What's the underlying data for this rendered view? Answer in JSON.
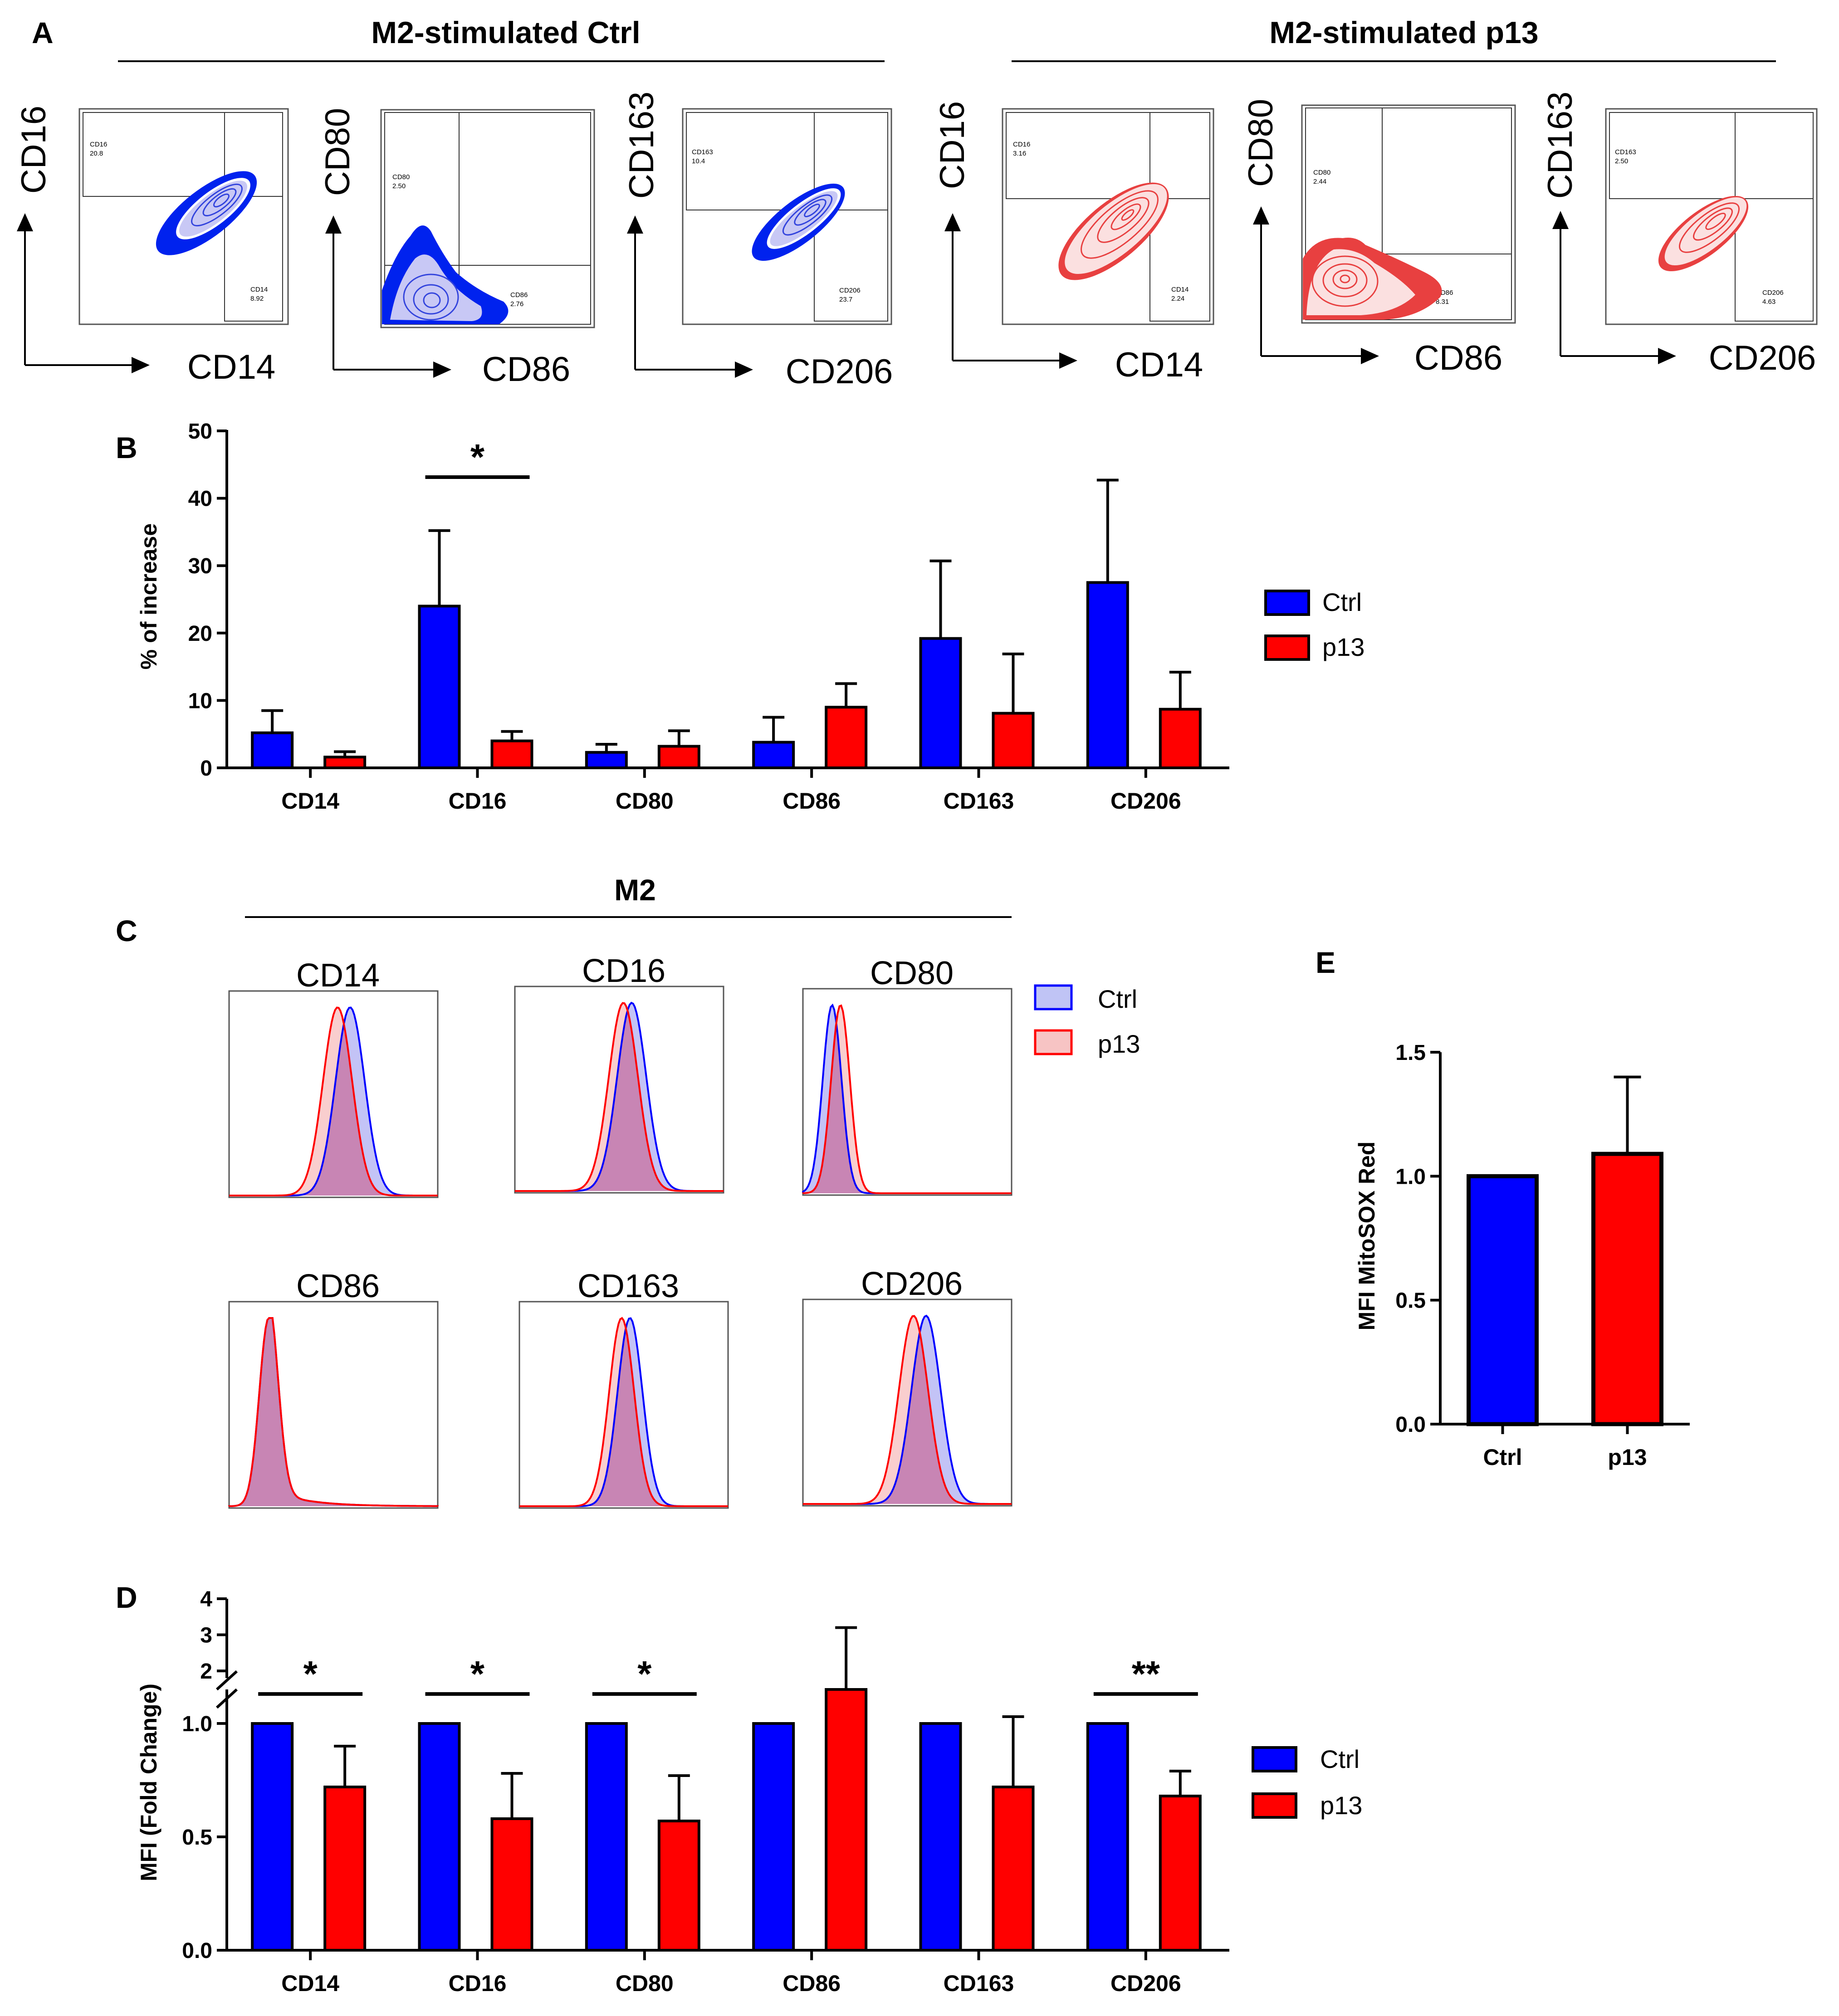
{
  "figure": {
    "panel_labels": {
      "A": "A",
      "B": "B",
      "C": "C",
      "D": "D",
      "E": "E"
    },
    "colors": {
      "ctrl": "#0000ff",
      "p13": "#ff0000",
      "ctrl_light": "#b8b8f5",
      "p13_light": "#f7b9b9",
      "overlap": "#c27bb0"
    }
  },
  "panel_a": {
    "groups": [
      {
        "title": "M2-stimulated Ctrl",
        "color": "blue",
        "plots": [
          {
            "y_axis": "CD16",
            "x_axis": "CD14",
            "gates": [
              {
                "name": "CD16",
                "value": "20.8"
              },
              {
                "name": "CD14",
                "value": "8.92"
              }
            ],
            "quadrant": false
          },
          {
            "y_axis": "CD80",
            "x_axis": "CD86",
            "gates": [
              {
                "name": "CD80",
                "value": "2.50"
              },
              {
                "name": "CD86",
                "value": "2.76"
              }
            ],
            "quadrant": true
          },
          {
            "y_axis": "CD163",
            "x_axis": "CD206",
            "gates": [
              {
                "name": "CD163",
                "value": "10.4"
              },
              {
                "name": "CD206",
                "value": "23.7"
              }
            ],
            "quadrant": false
          }
        ]
      },
      {
        "title": "M2-stimulated p13",
        "color": "red",
        "plots": [
          {
            "y_axis": "CD16",
            "x_axis": "CD14",
            "gates": [
              {
                "name": "CD16",
                "value": "3.16"
              },
              {
                "name": "CD14",
                "value": "2.24"
              }
            ],
            "quadrant": false
          },
          {
            "y_axis": "CD80",
            "x_axis": "CD86",
            "gates": [
              {
                "name": "CD80",
                "value": "2.44"
              },
              {
                "name": "CD86",
                "value": "8.31"
              }
            ],
            "quadrant": true
          },
          {
            "y_axis": "CD163",
            "x_axis": "CD206",
            "gates": [
              {
                "name": "CD163",
                "value": "2.50"
              },
              {
                "name": "CD206",
                "value": "4.63"
              }
            ],
            "quadrant": false
          }
        ]
      }
    ]
  },
  "panel_c": {
    "title": "M2",
    "legend": [
      {
        "label": "Ctrl"
      },
      {
        "label": "p13"
      }
    ],
    "histograms": [
      {
        "label": "CD14",
        "ctrl_peak": 0.58,
        "p13_peak": 0.52,
        "width": 0.07,
        "tail": 0
      },
      {
        "label": "CD16",
        "ctrl_peak": 0.56,
        "p13_peak": 0.52,
        "width": 0.07,
        "tail": 0
      },
      {
        "label": "CD80",
        "ctrl_peak": 0.14,
        "p13_peak": 0.18,
        "width": 0.045,
        "tail": 0
      },
      {
        "label": "CD86",
        "ctrl_peak": 0.19,
        "p13_peak": 0.19,
        "width": 0.045,
        "tail": 1
      },
      {
        "label": "CD163",
        "ctrl_peak": 0.53,
        "p13_peak": 0.49,
        "width": 0.06,
        "tail": 0
      },
      {
        "label": "CD206",
        "ctrl_peak": 0.59,
        "p13_peak": 0.53,
        "width": 0.07,
        "tail": 0
      }
    ]
  },
  "chart_data": [
    {
      "id": "B",
      "type": "bar",
      "ylabel": "% of increase",
      "ylim": [
        0,
        50
      ],
      "yticks": [
        "0",
        "10",
        "20",
        "30",
        "40",
        "50"
      ],
      "categories": [
        "CD14",
        "CD16",
        "CD80",
        "CD86",
        "CD163",
        "CD206"
      ],
      "series": [
        {
          "name": "Ctrl",
          "values": [
            5.2,
            24.0,
            2.3,
            3.8,
            19.2,
            27.5
          ],
          "errors": [
            3.3,
            11.2,
            1.2,
            3.7,
            11.5,
            15.2
          ]
        },
        {
          "name": "p13",
          "values": [
            1.6,
            4.0,
            3.2,
            9.0,
            8.1,
            8.7
          ],
          "errors": [
            0.8,
            1.4,
            2.3,
            3.5,
            8.8,
            5.5
          ]
        }
      ],
      "significance": [
        {
          "category": "CD16",
          "label": "*"
        }
      ],
      "legend_position": "right"
    },
    {
      "id": "D",
      "type": "bar",
      "ylabel": "MFI (Fold Change)",
      "ylim": [
        0,
        4
      ],
      "broken_axis": [
        1.15,
        1.8
      ],
      "yticks_lower": [
        "0.0",
        "0.5",
        "1.0"
      ],
      "yticks_upper": [
        "2",
        "3",
        "4"
      ],
      "categories": [
        "CD14",
        "CD16",
        "CD80",
        "CD86",
        "CD163",
        "CD206"
      ],
      "series": [
        {
          "name": "Ctrl",
          "values": [
            1.0,
            1.0,
            1.0,
            1.0,
            1.0,
            1.0
          ],
          "errors": [
            0,
            0,
            0,
            0,
            0,
            0
          ]
        },
        {
          "name": "p13",
          "values": [
            0.72,
            0.58,
            0.57,
            1.75,
            0.72,
            0.68
          ],
          "errors": [
            0.18,
            0.2,
            0.2,
            1.45,
            0.31,
            0.11
          ]
        }
      ],
      "significance": [
        {
          "category": "CD14",
          "label": "*"
        },
        {
          "category": "CD16",
          "label": "*"
        },
        {
          "category": "CD80",
          "label": "*"
        },
        {
          "category": "CD206",
          "label": "**"
        }
      ],
      "legend_position": "right"
    },
    {
      "id": "E",
      "type": "bar",
      "ylabel": "MFI MitoSOX Red",
      "ylim": [
        0,
        1.5
      ],
      "yticks": [
        "0.0",
        "0.5",
        "1.0",
        "1.5"
      ],
      "categories": [
        "Ctrl",
        "p13"
      ],
      "values": [
        1.0,
        1.09
      ],
      "errors": [
        0,
        0.31
      ]
    }
  ]
}
